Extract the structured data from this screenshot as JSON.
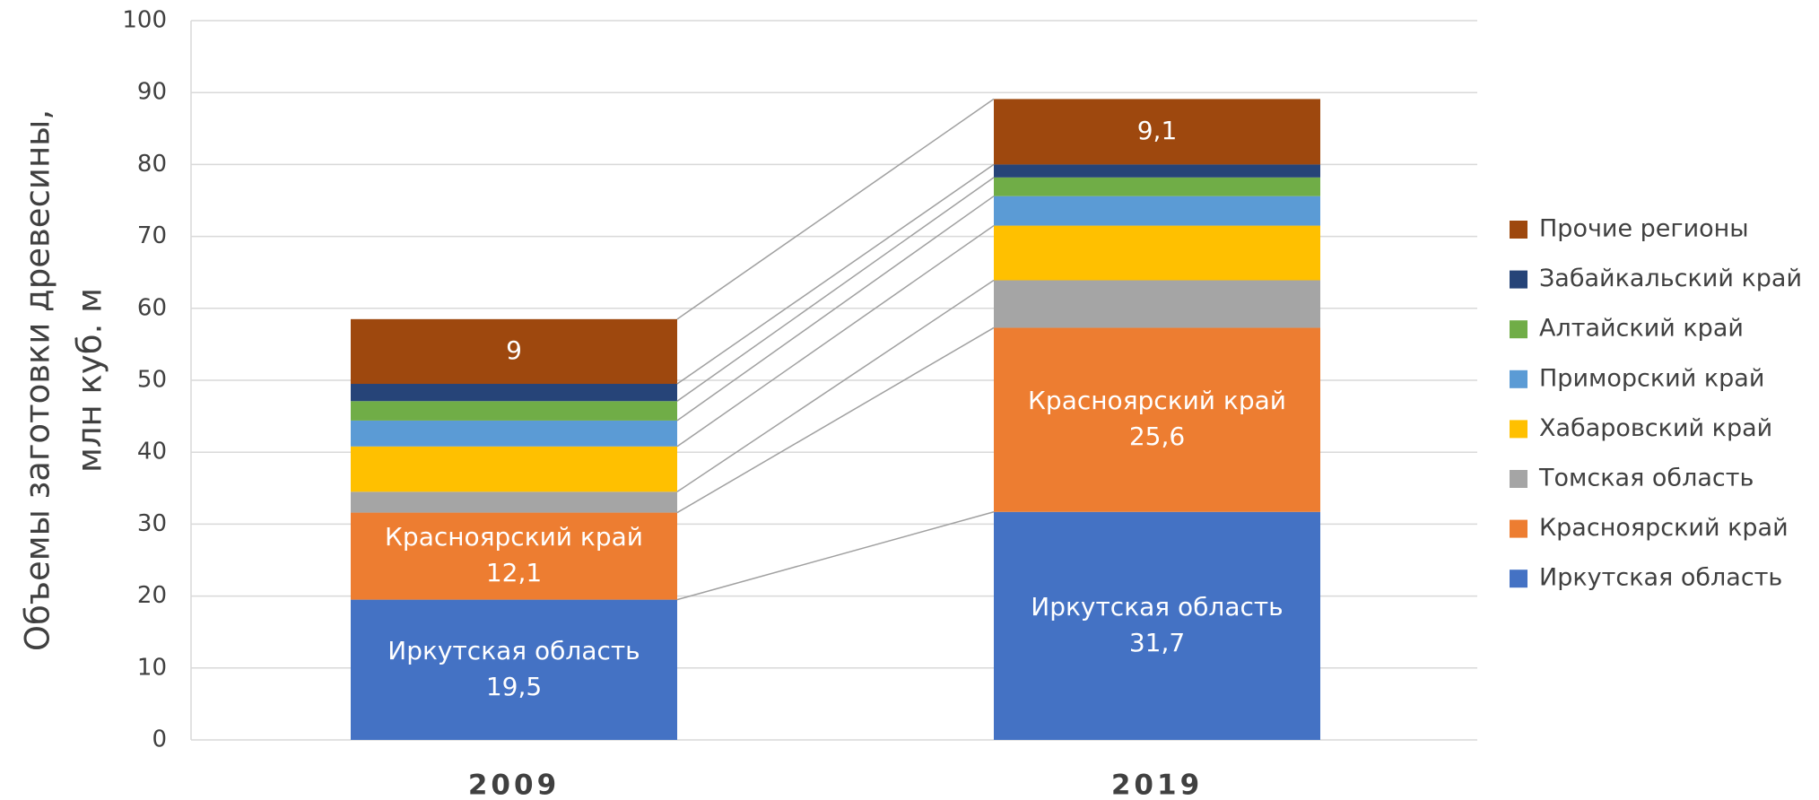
{
  "chart_data": {
    "type": "stacked_bar",
    "y_label": [
      "Объемы заготовки древесины,",
      "млн куб. м"
    ],
    "categories": [
      "2009",
      "2019"
    ],
    "ylim": [
      0,
      100
    ],
    "yticks": [
      0,
      10,
      20,
      30,
      40,
      50,
      60,
      70,
      80,
      90,
      100
    ],
    "grid": true,
    "connectors": true,
    "legend": "right",
    "series": [
      {
        "name": "Иркутская область",
        "color": "#4472c4",
        "values": [
          19.5,
          31.7
        ],
        "value_labels": [
          "19,5",
          "31,7"
        ],
        "label_name": true
      },
      {
        "name": "Красноярский край",
        "color": "#ed7d31",
        "values": [
          12.1,
          25.6
        ],
        "value_labels": [
          "12,1",
          "25,6"
        ],
        "label_name": true
      },
      {
        "name": "Томская область",
        "color": "#a5a5a5",
        "values": [
          2.9,
          6.6
        ]
      },
      {
        "name": "Хабаровский край",
        "color": "#ffc000",
        "values": [
          6.3,
          7.6
        ]
      },
      {
        "name": "Приморский край",
        "color": "#5b9bd5",
        "values": [
          3.6,
          4.1
        ]
      },
      {
        "name": "Алтайский край",
        "color": "#70ad47",
        "values": [
          2.7,
          2.6
        ]
      },
      {
        "name": "Забайкальский край",
        "color": "#264478",
        "values": [
          2.4,
          1.8
        ]
      },
      {
        "name": "Прочие регионы",
        "color": "#9e480e",
        "values": [
          9,
          9.1
        ],
        "value_labels": [
          "9",
          "9,1"
        ]
      }
    ]
  }
}
